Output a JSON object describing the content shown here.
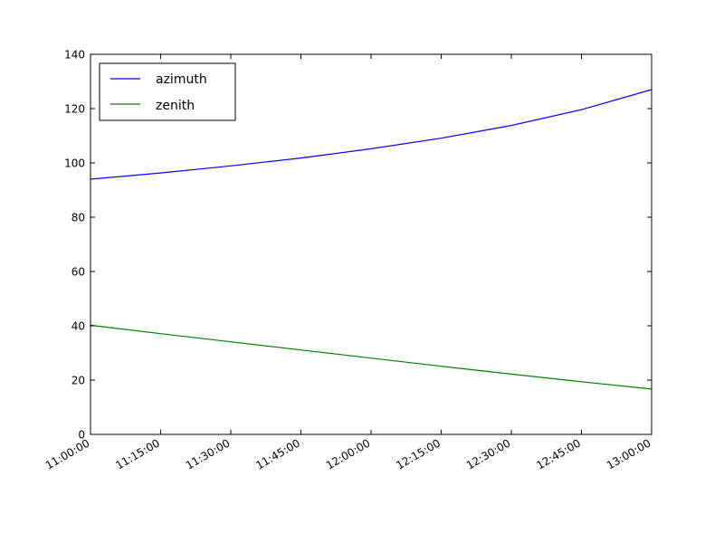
{
  "chart_data": {
    "type": "line",
    "title": "",
    "xlabel": "",
    "ylabel": "",
    "x": [
      "11:00:00",
      "11:15:00",
      "11:30:00",
      "11:45:00",
      "12:00:00",
      "12:15:00",
      "12:30:00",
      "12:45:00",
      "13:00:00"
    ],
    "xlim": [
      "11:00:00",
      "13:00:00"
    ],
    "ylim": [
      0,
      140
    ],
    "yticks": [
      0,
      20,
      40,
      60,
      80,
      100,
      120,
      140
    ],
    "grid": false,
    "legend_position": "top-left",
    "series": [
      {
        "name": "azimuth",
        "color": "#0000ff",
        "values": [
          94,
          96.3,
          98.9,
          101.8,
          105.2,
          109.1,
          113.8,
          119.6,
          127
        ]
      },
      {
        "name": "zenith",
        "color": "#008000",
        "values": [
          40.2,
          37.1,
          34.1,
          31.1,
          28.1,
          25.1,
          22.2,
          19.4,
          16.7
        ]
      }
    ]
  }
}
